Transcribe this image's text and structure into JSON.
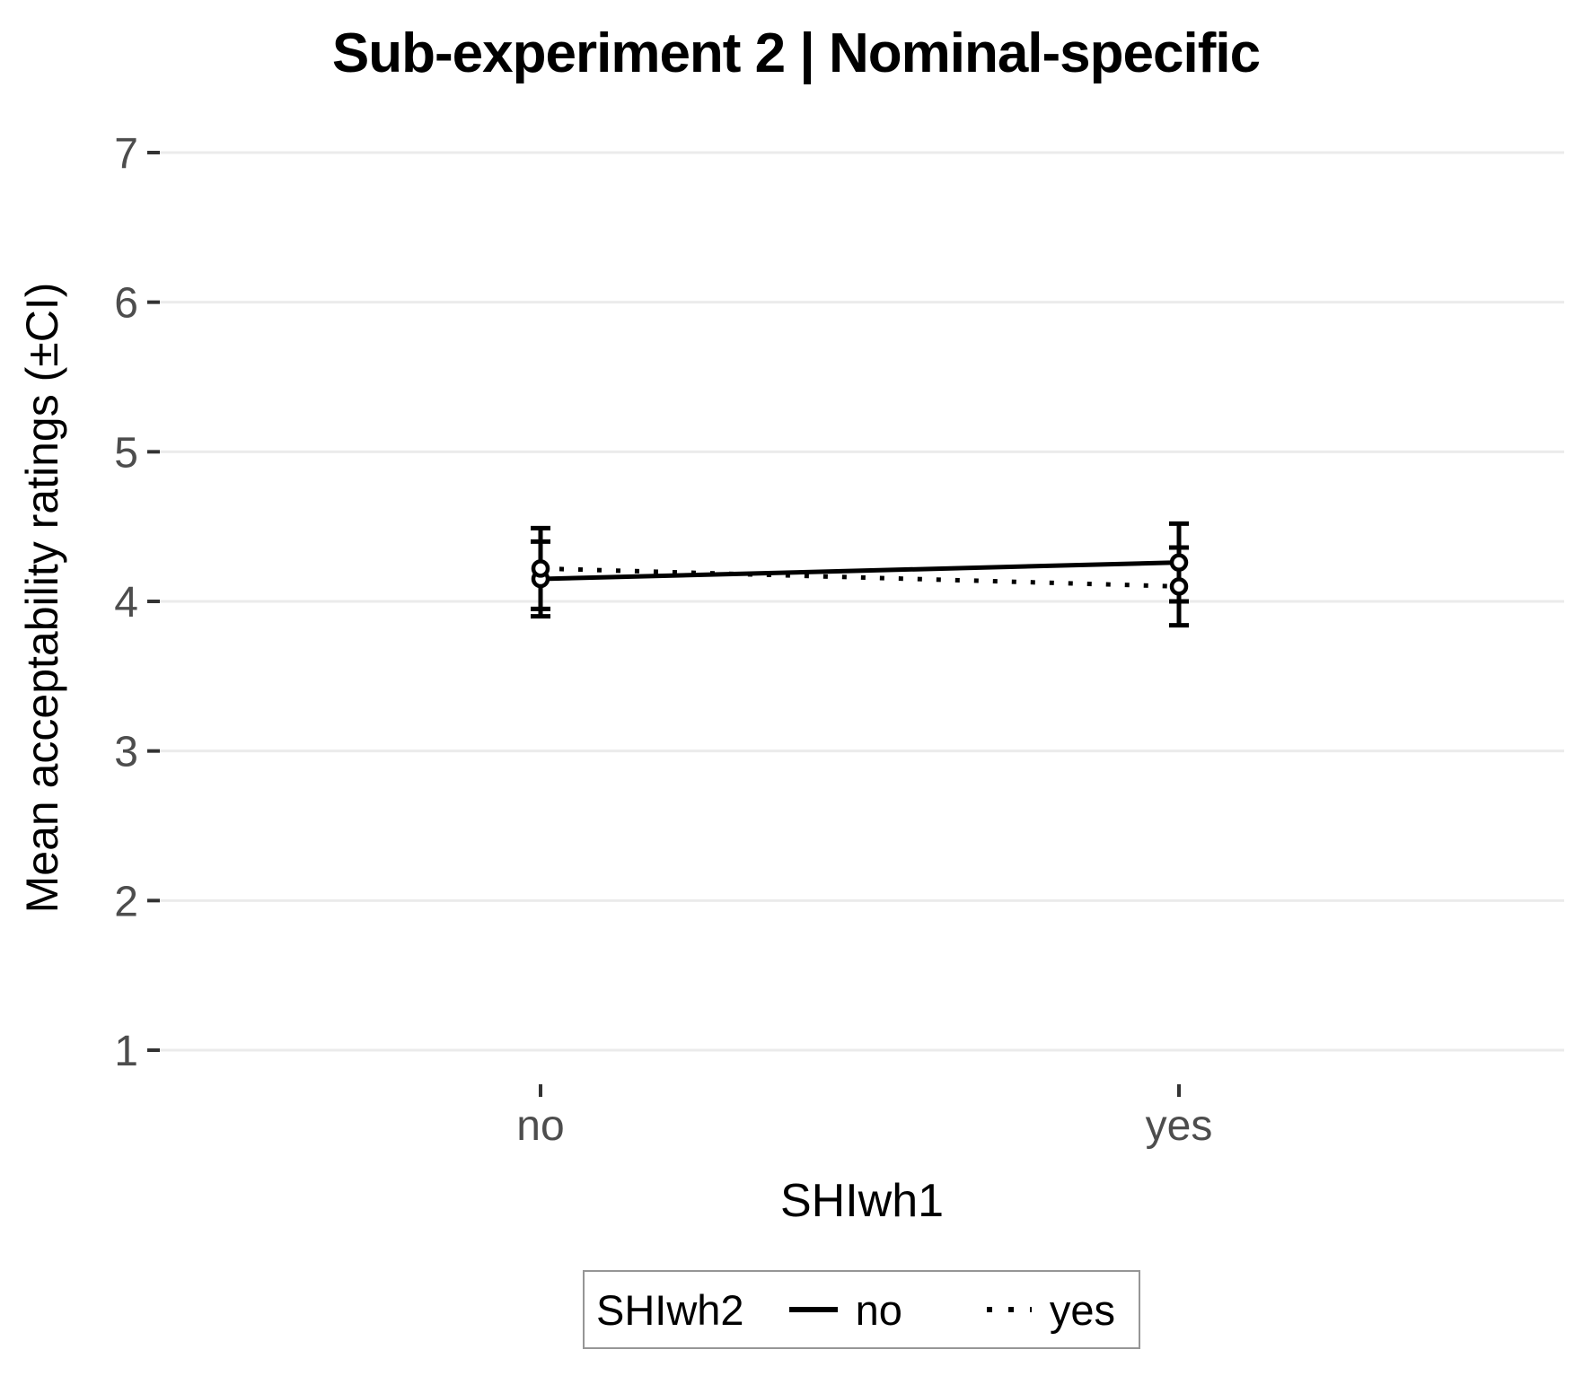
{
  "chart_data": {
    "type": "line",
    "title": "Sub-experiment 2 | Nominal-specific",
    "xlabel": "SHIwh1",
    "ylabel": "Mean acceptability ratings (±CI)",
    "categories": [
      "no",
      "yes"
    ],
    "y_ticks": [
      1,
      2,
      3,
      4,
      5,
      6,
      7
    ],
    "ylim": [
      1,
      7
    ],
    "grid": "major-horizontal-only",
    "legend": {
      "title": "SHIwh2",
      "position": "bottom",
      "entries": [
        {
          "label": "no",
          "line_style": "solid"
        },
        {
          "label": "yes",
          "line_style": "dotted"
        }
      ]
    },
    "series": [
      {
        "name": "no",
        "line_style": "solid",
        "marker": "open-circle",
        "values": [
          4.15,
          4.26
        ],
        "ci_low": [
          3.9,
          4.0
        ],
        "ci_high": [
          4.4,
          4.52
        ]
      },
      {
        "name": "yes",
        "line_style": "dotted",
        "marker": "open-circle",
        "values": [
          4.22,
          4.1
        ],
        "ci_low": [
          3.95,
          3.84
        ],
        "ci_high": [
          4.49,
          4.36
        ]
      }
    ],
    "colors": {
      "series_stroke": "#000000",
      "gridline": "#ebebeb",
      "tick_mark": "#333333",
      "tick_label": "#4d4d4d",
      "axis_title": "#000000",
      "legend_border": "#969696",
      "marker_fill": "#ffffff"
    }
  }
}
